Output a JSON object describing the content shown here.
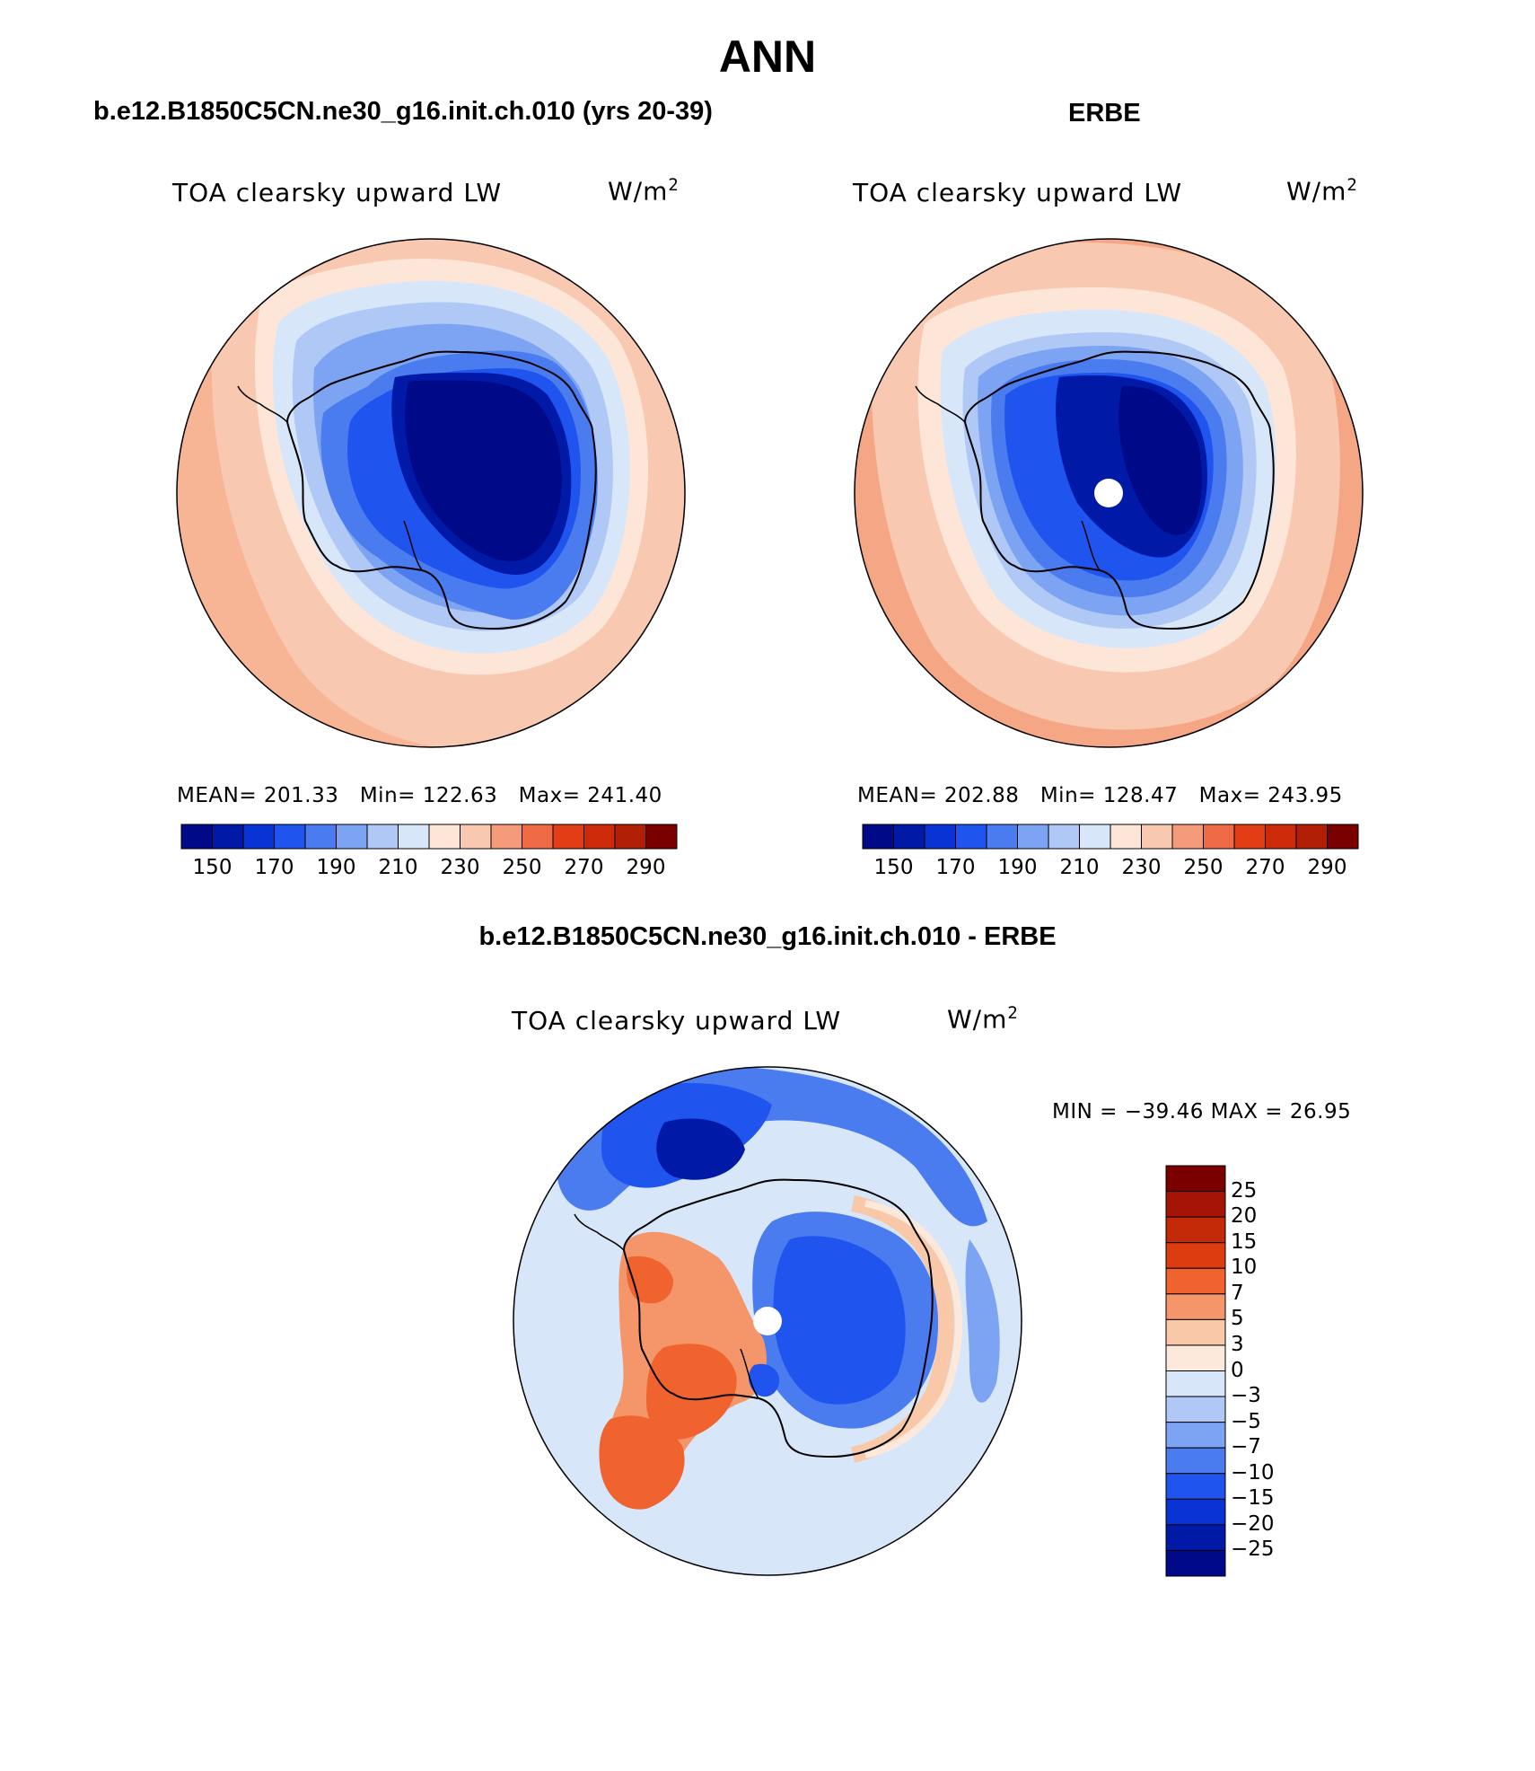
{
  "title": "ANN",
  "panels": [
    {
      "id": "model",
      "case_title": "b.e12.B1850C5CN.ne30_g16.init.ch.010 (yrs 20-39)",
      "variable": "TOA clearsky upward LW",
      "units_base": "W/m",
      "units_exp": "2",
      "stats": {
        "mean_label": "MEAN=",
        "mean": "201.33",
        "min_label": "Min=",
        "min": "122.63",
        "max_label": "Max=",
        "max": "241.40"
      },
      "colorbar_labels": [
        "150",
        "170",
        "190",
        "210",
        "230",
        "250",
        "270",
        "290"
      ]
    },
    {
      "id": "obs",
      "case_title": "ERBE",
      "variable": "TOA clearsky upward LW",
      "units_base": "W/m",
      "units_exp": "2",
      "stats": {
        "mean_label": "MEAN=",
        "mean": "202.88",
        "min_label": "Min=",
        "min": "128.47",
        "max_label": "Max=",
        "max": "243.95"
      },
      "colorbar_labels": [
        "150",
        "170",
        "190",
        "210",
        "230",
        "250",
        "270",
        "290"
      ]
    }
  ],
  "diff": {
    "case_title": "b.e12.B1850C5CN.ne30_g16.init.ch.010 - ERBE",
    "variable": "TOA clearsky upward LW",
    "units_base": "W/m",
    "units_exp": "2",
    "minmax_text": "MIN = −39.46 MAX =  26.95",
    "colorbar_labels": [
      "25",
      "20",
      "15",
      "10",
      "7",
      "5",
      "3",
      "0",
      "−3",
      "−5",
      "−7",
      "−10",
      "−15",
      "−20",
      "−25"
    ]
  },
  "colors": {
    "abs_scale": [
      "#000a88",
      "#0019a6",
      "#0a33d6",
      "#1f55ee",
      "#4a7cf0",
      "#7da4f2",
      "#b0c8f6",
      "#d8e6fa",
      "#fde6d8",
      "#f9c8b0",
      "#f49a78",
      "#ee6a44",
      "#e23e16",
      "#cc2a08",
      "#b01f06",
      "#7a0000"
    ],
    "diff_scale": [
      "#7a0000",
      "#a51406",
      "#c42a08",
      "#dd3c10",
      "#f0622e",
      "#f5956a",
      "#f9c8a8",
      "#fde8dc",
      "#d8e6fa",
      "#b0c8f6",
      "#7da4f2",
      "#4a7cf0",
      "#1f55ee",
      "#0a33d6",
      "#0019a6",
      "#000a88"
    ],
    "coast": "#000000"
  }
}
